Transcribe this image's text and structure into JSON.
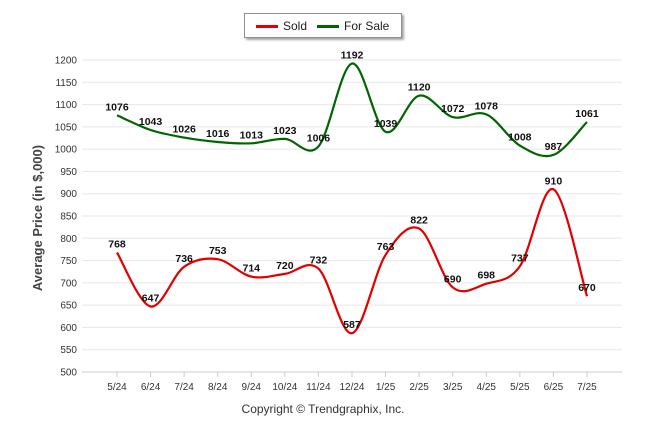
{
  "chart_data": {
    "type": "line",
    "categories": [
      "5/24",
      "6/24",
      "7/24",
      "8/24",
      "9/24",
      "10/24",
      "11/24",
      "12/24",
      "1/25",
      "2/25",
      "3/25",
      "4/25",
      "5/25",
      "6/25",
      "7/25"
    ],
    "series": [
      {
        "name": "Sold",
        "color": "#e00000",
        "values": [
          768,
          647,
          736,
          753,
          714,
          720,
          732,
          587,
          763,
          822,
          690,
          698,
          737,
          910,
          670
        ]
      },
      {
        "name": "For Sale",
        "color": "#006400",
        "values": [
          1076,
          1043,
          1026,
          1016,
          1013,
          1023,
          1006,
          1192,
          1039,
          1120,
          1072,
          1078,
          1008,
          987,
          1061
        ]
      }
    ],
    "ylabel": "Average Price (in $,000)",
    "ylim": [
      500,
      1200
    ],
    "yticks": [
      500,
      550,
      600,
      650,
      700,
      750,
      800,
      850,
      900,
      950,
      1000,
      1050,
      1100,
      1150,
      1200
    ],
    "grid": true,
    "legend_position": "top-center"
  },
  "legend": {
    "sold_label": "Sold",
    "forsale_label": "For Sale"
  },
  "credit": "Copyright © Trendgraphix, Inc."
}
